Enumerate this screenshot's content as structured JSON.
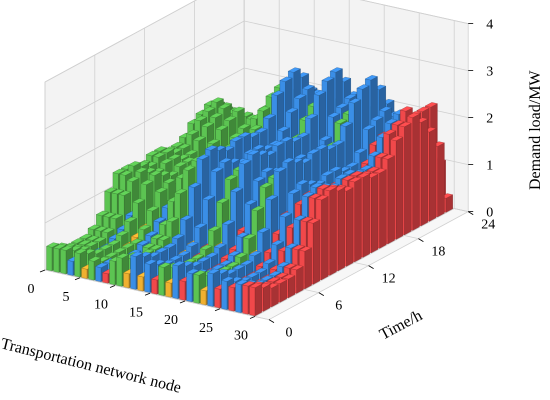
{
  "chart_data": {
    "type": "bar3d",
    "title": "",
    "xlabel": "Transportation network node",
    "ylabel": "Time/h",
    "zlabel": "Demand load/MW",
    "x_ticks": [
      "0",
      "5",
      "10",
      "15",
      "20",
      "25",
      "30"
    ],
    "y_ticks": [
      "0",
      "6",
      "12",
      "18",
      "24"
    ],
    "z_ticks": [
      "0",
      "1",
      "2",
      "3",
      "4"
    ],
    "xlim": [
      0,
      32
    ],
    "ylim": [
      0,
      24
    ],
    "zlim": [
      0,
      4
    ],
    "grid": true,
    "colors": {
      "green": "#5cc452",
      "orange": "#f0b030",
      "blue": "#3a8ee6",
      "red": "#f0484a",
      "pane": "#f3f3f3",
      "grid": "#d0d0d0"
    },
    "nodes": [
      {
        "node": 1,
        "color": "green",
        "load": [
          0.5,
          0.4,
          0.3,
          0.3,
          0.3,
          0.4,
          0.6,
          1.0,
          1.3,
          1.3,
          1.2,
          1.2,
          1.3,
          1.3,
          1.2,
          1.2,
          1.3,
          1.5,
          1.6,
          1.7,
          1.6,
          1.4,
          1.1,
          0.8
        ]
      },
      {
        "node": 2,
        "color": "green",
        "load": [
          0.5,
          0.4,
          0.3,
          0.3,
          0.3,
          0.4,
          0.6,
          1.0,
          1.3,
          1.4,
          1.3,
          1.2,
          1.3,
          1.3,
          1.2,
          1.2,
          1.4,
          1.6,
          1.7,
          1.8,
          1.6,
          1.4,
          1.1,
          0.8
        ]
      },
      {
        "node": 3,
        "color": "green",
        "load": [
          0.5,
          0.4,
          0.3,
          0.3,
          0.3,
          0.4,
          0.6,
          1.0,
          1.2,
          1.3,
          1.2,
          1.1,
          1.2,
          1.2,
          1.1,
          1.1,
          1.3,
          1.5,
          1.6,
          1.7,
          1.5,
          1.3,
          1.0,
          0.7
        ]
      },
      {
        "node": 4,
        "color": "blue",
        "load": [
          0.3,
          0.2,
          0.2,
          0.2,
          0.2,
          0.3,
          0.4,
          0.6,
          0.7,
          0.8,
          0.8,
          0.7,
          0.7,
          0.7,
          0.7,
          0.7,
          0.8,
          0.9,
          1.0,
          1.0,
          0.9,
          0.8,
          0.6,
          0.4
        ]
      },
      {
        "node": 5,
        "color": "green",
        "load": [
          0.5,
          0.4,
          0.3,
          0.3,
          0.3,
          0.4,
          0.6,
          0.9,
          1.2,
          1.3,
          1.2,
          1.1,
          1.2,
          1.2,
          1.1,
          1.1,
          1.3,
          1.5,
          1.6,
          1.7,
          1.5,
          1.3,
          1.0,
          0.7
        ]
      },
      {
        "node": 6,
        "color": "orange",
        "load": [
          0.2,
          0.2,
          0.1,
          0.1,
          0.1,
          0.2,
          0.3,
          0.4,
          0.5,
          0.5,
          0.5,
          0.5,
          0.5,
          0.5,
          0.5,
          0.5,
          0.5,
          0.6,
          0.6,
          0.6,
          0.5,
          0.4,
          0.3,
          0.2
        ]
      },
      {
        "node": 7,
        "color": "green",
        "load": [
          0.4,
          0.3,
          0.3,
          0.3,
          0.3,
          0.3,
          0.5,
          0.8,
          1.1,
          1.2,
          1.1,
          1.0,
          1.1,
          1.1,
          1.0,
          1.0,
          1.2,
          1.4,
          1.5,
          1.6,
          1.4,
          1.2,
          0.9,
          0.6
        ]
      },
      {
        "node": 8,
        "color": "blue",
        "load": [
          0.3,
          0.3,
          0.2,
          0.2,
          0.2,
          0.3,
          0.4,
          0.6,
          0.8,
          0.8,
          0.8,
          0.8,
          0.8,
          0.8,
          0.8,
          0.8,
          0.9,
          1.0,
          1.0,
          1.1,
          1.0,
          0.8,
          0.6,
          0.4
        ]
      },
      {
        "node": 9,
        "color": "red",
        "load": [
          0.2,
          0.2,
          0.1,
          0.1,
          0.1,
          0.2,
          0.3,
          0.4,
          0.5,
          0.5,
          0.5,
          0.5,
          0.5,
          0.5,
          0.5,
          0.5,
          0.5,
          0.6,
          0.6,
          0.6,
          0.5,
          0.4,
          0.3,
          0.2
        ]
      },
      {
        "node": 10,
        "color": "green",
        "load": [
          0.5,
          0.4,
          0.4,
          0.3,
          0.4,
          0.5,
          0.7,
          1.1,
          1.5,
          1.6,
          1.5,
          1.4,
          1.5,
          1.5,
          1.4,
          1.4,
          1.6,
          1.9,
          2.0,
          2.1,
          1.9,
          1.6,
          1.2,
          0.9
        ]
      },
      {
        "node": 11,
        "color": "green",
        "load": [
          0.6,
          0.5,
          0.4,
          0.4,
          0.4,
          0.5,
          0.8,
          1.3,
          1.7,
          1.8,
          1.7,
          1.6,
          1.7,
          1.7,
          1.6,
          1.6,
          1.8,
          2.1,
          2.3,
          2.4,
          2.2,
          1.8,
          1.4,
          1.0
        ]
      },
      {
        "node": 12,
        "color": "orange",
        "load": [
          0.3,
          0.2,
          0.2,
          0.2,
          0.2,
          0.3,
          0.4,
          0.6,
          0.8,
          0.8,
          0.8,
          0.7,
          0.8,
          0.8,
          0.7,
          0.7,
          0.8,
          1.0,
          1.0,
          1.1,
          1.0,
          0.8,
          0.6,
          0.4
        ]
      },
      {
        "node": 13,
        "color": "blue",
        "load": [
          0.7,
          0.6,
          0.5,
          0.5,
          0.5,
          0.6,
          0.9,
          1.5,
          2.0,
          2.1,
          2.0,
          1.9,
          2.0,
          2.0,
          1.9,
          1.9,
          2.1,
          2.5,
          2.7,
          2.8,
          2.6,
          2.2,
          1.7,
          1.2
        ]
      },
      {
        "node": 14,
        "color": "orange",
        "load": [
          0.3,
          0.2,
          0.2,
          0.2,
          0.2,
          0.3,
          0.4,
          0.6,
          0.8,
          0.9,
          0.8,
          0.8,
          0.8,
          0.8,
          0.8,
          0.8,
          0.9,
          1.0,
          1.1,
          1.1,
          1.0,
          0.9,
          0.7,
          0.5
        ]
      },
      {
        "node": 15,
        "color": "blue",
        "load": [
          0.6,
          0.5,
          0.4,
          0.4,
          0.4,
          0.5,
          0.8,
          1.3,
          1.8,
          1.9,
          1.8,
          1.7,
          1.8,
          1.8,
          1.7,
          1.7,
          1.9,
          2.2,
          2.4,
          2.5,
          2.3,
          1.9,
          1.5,
          1.1
        ]
      },
      {
        "node": 16,
        "color": "red",
        "load": [
          0.3,
          0.2,
          0.2,
          0.2,
          0.2,
          0.3,
          0.4,
          0.6,
          0.8,
          0.8,
          0.8,
          0.7,
          0.8,
          0.8,
          0.7,
          0.7,
          0.8,
          1.0,
          1.0,
          1.1,
          1.0,
          0.8,
          0.6,
          0.4
        ]
      },
      {
        "node": 17,
        "color": "green",
        "load": [
          0.6,
          0.5,
          0.4,
          0.4,
          0.4,
          0.5,
          0.8,
          1.3,
          1.7,
          1.8,
          1.7,
          1.6,
          1.7,
          1.7,
          1.6,
          1.6,
          1.8,
          2.1,
          2.3,
          2.4,
          2.2,
          1.8,
          1.4,
          1.0
        ]
      },
      {
        "node": 18,
        "color": "orange",
        "load": [
          0.3,
          0.3,
          0.2,
          0.2,
          0.2,
          0.3,
          0.5,
          0.7,
          0.9,
          1.0,
          0.9,
          0.9,
          0.9,
          0.9,
          0.9,
          0.9,
          1.0,
          1.2,
          1.3,
          1.3,
          1.2,
          1.0,
          0.8,
          0.6
        ]
      },
      {
        "node": 19,
        "color": "blue",
        "load": [
          0.7,
          0.6,
          0.5,
          0.5,
          0.5,
          0.6,
          1.0,
          1.6,
          2.1,
          2.2,
          2.1,
          2.0,
          2.1,
          2.1,
          2.0,
          2.0,
          2.3,
          2.7,
          2.9,
          3.0,
          2.7,
          2.3,
          1.8,
          1.3
        ]
      },
      {
        "node": 20,
        "color": "red",
        "load": [
          0.4,
          0.3,
          0.3,
          0.3,
          0.3,
          0.4,
          0.5,
          0.8,
          1.1,
          1.2,
          1.1,
          1.0,
          1.1,
          1.1,
          1.0,
          1.0,
          1.2,
          1.4,
          1.5,
          1.5,
          1.4,
          1.2,
          0.9,
          0.6
        ]
      },
      {
        "node": 21,
        "color": "blue",
        "load": [
          0.6,
          0.5,
          0.4,
          0.4,
          0.4,
          0.5,
          0.8,
          1.4,
          1.8,
          1.9,
          1.8,
          1.7,
          1.8,
          1.8,
          1.7,
          1.7,
          1.9,
          2.3,
          2.4,
          2.5,
          2.3,
          2.0,
          1.5,
          1.1
        ]
      },
      {
        "node": 22,
        "color": "green",
        "load": [
          0.6,
          0.5,
          0.4,
          0.4,
          0.4,
          0.5,
          0.8,
          1.3,
          1.7,
          1.8,
          1.7,
          1.6,
          1.7,
          1.7,
          1.6,
          1.6,
          1.8,
          2.2,
          2.3,
          2.4,
          2.2,
          1.8,
          1.4,
          1.0
        ]
      },
      {
        "node": 23,
        "color": "orange",
        "load": [
          0.3,
          0.3,
          0.2,
          0.2,
          0.2,
          0.3,
          0.5,
          0.7,
          1.0,
          1.0,
          1.0,
          0.9,
          1.0,
          1.0,
          0.9,
          0.9,
          1.0,
          1.2,
          1.3,
          1.4,
          1.2,
          1.0,
          0.8,
          0.6
        ]
      },
      {
        "node": 24,
        "color": "blue",
        "load": [
          0.7,
          0.6,
          0.5,
          0.5,
          0.5,
          0.6,
          1.0,
          1.6,
          2.1,
          2.2,
          2.1,
          2.0,
          2.1,
          2.1,
          2.0,
          2.0,
          2.3,
          2.7,
          2.9,
          3.0,
          2.7,
          2.3,
          1.8,
          1.3
        ]
      },
      {
        "node": 25,
        "color": "red",
        "load": [
          0.4,
          0.3,
          0.3,
          0.3,
          0.3,
          0.4,
          0.6,
          0.9,
          1.2,
          1.3,
          1.2,
          1.1,
          1.2,
          1.2,
          1.1,
          1.1,
          1.3,
          1.5,
          1.6,
          1.7,
          1.5,
          1.3,
          1.0,
          0.7
        ]
      },
      {
        "node": 26,
        "color": "blue",
        "load": [
          0.6,
          0.5,
          0.4,
          0.4,
          0.4,
          0.5,
          0.8,
          1.3,
          1.7,
          1.8,
          1.7,
          1.6,
          1.7,
          1.7,
          1.6,
          1.6,
          1.8,
          2.2,
          2.3,
          2.4,
          2.2,
          1.8,
          1.4,
          1.0
        ]
      },
      {
        "node": 27,
        "color": "red",
        "load": [
          0.5,
          0.4,
          0.3,
          0.3,
          0.3,
          0.4,
          0.7,
          1.1,
          1.5,
          1.6,
          1.5,
          1.4,
          1.5,
          1.5,
          1.4,
          1.4,
          1.6,
          1.9,
          2.0,
          2.1,
          1.9,
          1.6,
          1.3,
          0.9
        ]
      },
      {
        "node": 28,
        "color": "blue",
        "load": [
          0.6,
          0.5,
          0.4,
          0.4,
          0.4,
          0.5,
          0.8,
          1.3,
          1.7,
          1.8,
          1.7,
          1.6,
          1.7,
          1.7,
          1.6,
          1.6,
          1.8,
          2.1,
          2.3,
          2.4,
          2.2,
          1.8,
          1.4,
          1.0
        ]
      },
      {
        "node": 29,
        "color": "red",
        "load": [
          0.6,
          0.5,
          0.4,
          0.4,
          0.4,
          0.5,
          0.8,
          1.3,
          1.7,
          1.8,
          1.7,
          1.6,
          1.7,
          1.7,
          1.6,
          1.6,
          1.8,
          2.2,
          2.3,
          2.5,
          2.3,
          2.3,
          2.3,
          1.0
        ]
      },
      {
        "node": 30,
        "color": "red",
        "load": [
          0.6,
          0.5,
          0.4,
          0.4,
          0.4,
          0.5,
          0.8,
          1.3,
          1.7,
          1.8,
          1.7,
          1.6,
          1.7,
          1.7,
          1.6,
          1.6,
          1.8,
          2.1,
          2.3,
          2.4,
          2.2,
          1.9,
          1.5,
          0.3
        ]
      }
    ]
  }
}
